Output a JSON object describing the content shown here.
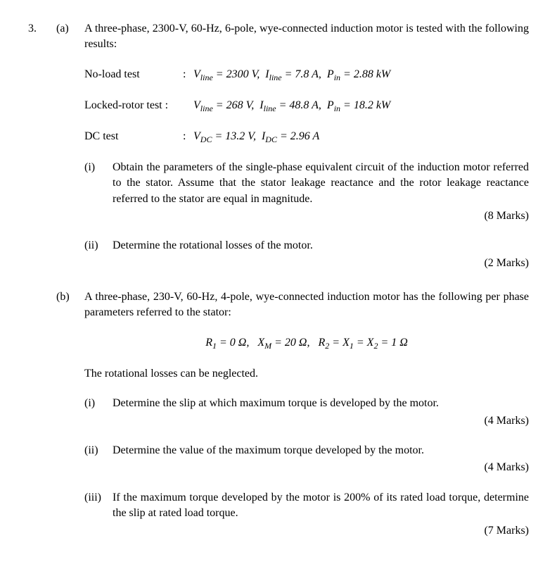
{
  "q": {
    "number": "3.",
    "a": {
      "label": "(a)",
      "intro": "A three-phase, 2300-V, 60-Hz, 6-pole, wye-connected induction motor is tested with the following results:",
      "tests": {
        "nl": {
          "label": "No-load test",
          "colon": ":",
          "data": "V_line = 2300 V,  I_line = 7.8 A,  P_in = 2.88 kW"
        },
        "lr": {
          "label": "Locked-rotor test :",
          "colon": "",
          "data": "V_line = 268 V,  I_line = 48.8 A,  P_in = 18.2 kW"
        },
        "dc": {
          "label": "DC test",
          "colon": ":",
          "data": "V_DC = 13.2 V,  I_DC = 2.96 A"
        }
      },
      "i": {
        "label": "(i)",
        "text": "Obtain the parameters of the single-phase equivalent circuit of the induction motor referred to the stator. Assume that the stator leakage reactance and the rotor leakage reactance referred to the stator are equal in magnitude.",
        "marks": "(8 Marks)"
      },
      "ii": {
        "label": "(ii)",
        "text": "Determine the rotational losses of the motor.",
        "marks": "(2 Marks)"
      }
    },
    "b": {
      "label": "(b)",
      "intro": "A three-phase, 230-V, 60-Hz, 4-pole, wye-connected induction motor has the following per phase parameters referred to the stator:",
      "params": "R₁ = 0 Ω,   X_M = 20 Ω,   R₂ = X₁ = X₂ = 1 Ω",
      "note": "The rotational losses can be neglected.",
      "i": {
        "label": "(i)",
        "text": "Determine the slip at which maximum torque is developed by the motor.",
        "marks": "(4 Marks)"
      },
      "ii": {
        "label": "(ii)",
        "text": "Determine the value of the maximum torque developed by the motor.",
        "marks": "(4 Marks)"
      },
      "iii": {
        "label": "(iii)",
        "text": "If the maximum torque developed by the motor is 200% of its rated load torque, determine the slip at rated load torque.",
        "marks": "(7 Marks)"
      }
    }
  }
}
